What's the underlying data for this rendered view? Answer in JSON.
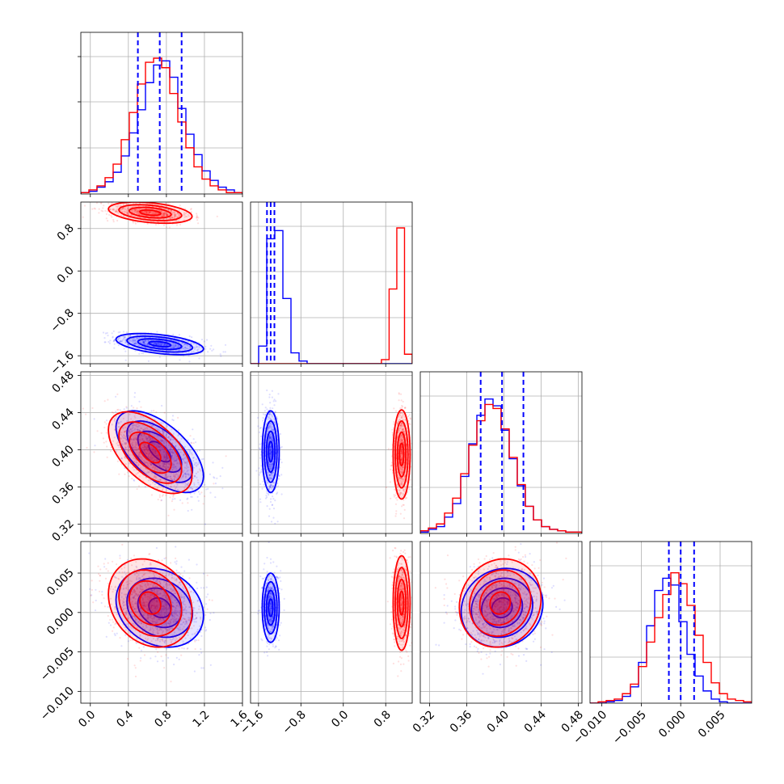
{
  "chart_data": {
    "type": "corner",
    "colors": {
      "run_a": "#0000ff",
      "run_b": "#ff0000"
    },
    "grid": true,
    "parameters": [
      {
        "range": [
          -0.1,
          1.6
        ],
        "ticks": [
          0.0,
          0.4,
          0.8,
          1.2,
          1.6
        ],
        "tick_labels": [
          "0.0",
          "0.4",
          "0.8",
          "1.2",
          "1.6"
        ]
      },
      {
        "range": [
          -1.75,
          1.3
        ],
        "ticks": [
          -1.6,
          -0.8,
          0.0,
          0.8
        ],
        "tick_labels": [
          "−1.6",
          "−0.8",
          "0.0",
          "0.8"
        ]
      },
      {
        "range": [
          0.31,
          0.484
        ],
        "ticks": [
          0.32,
          0.36,
          0.4,
          0.44,
          0.48
        ],
        "tick_labels": [
          "0.32",
          "0.36",
          "0.40",
          "0.44",
          "0.48"
        ]
      },
      {
        "range": [
          -0.0115,
          0.009
        ],
        "ticks": [
          -0.01,
          -0.005,
          0.0,
          0.005
        ],
        "tick_labels": [
          "−0.010",
          "−0.005",
          "0.000",
          "0.005"
        ]
      }
    ],
    "marginals": [
      {
        "edges": [
          -0.1,
          1.6
        ],
        "run_a_counts": [
          0.01,
          0.02,
          0.05,
          0.09,
          0.16,
          0.28,
          0.45,
          0.62,
          0.82,
          0.95,
          0.98,
          0.86,
          0.63,
          0.44,
          0.29,
          0.17,
          0.1,
          0.05,
          0.03,
          0.01
        ],
        "run_b_counts": [
          0.01,
          0.03,
          0.06,
          0.12,
          0.22,
          0.4,
          0.6,
          0.81,
          0.97,
          1.0,
          0.93,
          0.74,
          0.53,
          0.34,
          0.2,
          0.11,
          0.06,
          0.03,
          0.01,
          0.01
        ],
        "run_a_quantiles": [
          0.5,
          0.73,
          0.96
        ]
      },
      {
        "edges": [
          -1.75,
          1.3
        ],
        "run_a_counts": [
          0.0,
          0.13,
          0.92,
          0.98,
          0.48,
          0.08,
          0.02,
          0.0,
          0.0,
          0.0,
          0.0,
          0.0,
          0.0,
          0.0,
          0.0,
          0.0,
          0.0,
          0.0,
          0.0,
          0.0
        ],
        "run_b_counts": [
          0.0,
          0.0,
          0.0,
          0.0,
          0.0,
          0.0,
          0.0,
          0.0,
          0.0,
          0.0,
          0.0,
          0.0,
          0.0,
          0.0,
          0.0,
          0.0,
          0.0,
          0.03,
          0.55,
          1.0,
          0.07
        ],
        "run_b_edges": [
          -1.75,
          1.3
        ],
        "run_a_quantiles": [
          -1.44,
          -1.37,
          -1.3
        ]
      },
      {
        "edges": [
          0.31,
          0.484
        ],
        "run_a_counts": [
          0.01,
          0.03,
          0.05,
          0.12,
          0.22,
          0.42,
          0.66,
          0.87,
          0.99,
          0.94,
          0.76,
          0.55,
          0.35,
          0.2,
          0.1,
          0.05,
          0.03,
          0.02,
          0.01,
          0.01
        ],
        "run_b_counts": [
          0.02,
          0.04,
          0.07,
          0.15,
          0.26,
          0.44,
          0.65,
          0.83,
          0.95,
          0.92,
          0.77,
          0.56,
          0.36,
          0.2,
          0.1,
          0.05,
          0.03,
          0.02,
          0.01,
          0.01
        ],
        "run_a_quantiles": [
          0.375,
          0.398,
          0.421
        ]
      },
      {
        "edges": [
          -0.0115,
          0.009
        ],
        "run_a_counts": [
          0.0,
          0.0,
          0.01,
          0.02,
          0.05,
          0.12,
          0.3,
          0.57,
          0.83,
          0.92,
          0.87,
          0.6,
          0.36,
          0.2,
          0.09,
          0.03,
          0.01,
          0.0,
          0.0,
          0.0
        ],
        "run_b_counts": [
          0.0,
          0.01,
          0.02,
          0.03,
          0.07,
          0.14,
          0.27,
          0.45,
          0.63,
          0.8,
          0.96,
          0.88,
          0.72,
          0.5,
          0.3,
          0.15,
          0.07,
          0.03,
          0.02,
          0.01
        ],
        "run_a_quantiles": [
          -0.0015,
          0.0,
          0.0017
        ]
      }
    ],
    "joint": [
      {
        "row": 1,
        "col": 0,
        "run_a": {
          "mean": [
            0.73,
            -1.38
          ],
          "sd": [
            0.23,
            0.1
          ],
          "corr": -0.45
        },
        "run_b": {
          "mean": [
            0.63,
            1.1
          ],
          "sd": [
            0.22,
            0.1
          ],
          "corr": -0.35
        }
      },
      {
        "row": 2,
        "col": 0,
        "run_a": {
          "mean": [
            0.73,
            0.398
          ],
          "sd": [
            0.23,
            0.022
          ],
          "corr": -0.6
        },
        "run_b": {
          "mean": [
            0.63,
            0.397
          ],
          "sd": [
            0.22,
            0.022
          ],
          "corr": -0.55
        }
      },
      {
        "row": 2,
        "col": 1,
        "run_a": {
          "mean": [
            -1.37,
            0.398
          ],
          "sd": [
            0.08,
            0.022
          ],
          "corr": 0.0
        },
        "run_b": {
          "mean": [
            1.1,
            0.395
          ],
          "sd": [
            0.08,
            0.024
          ],
          "corr": 0.0
        }
      },
      {
        "row": 3,
        "col": 0,
        "run_a": {
          "mean": [
            0.73,
            0.0006
          ],
          "sd": [
            0.23,
            0.0025
          ],
          "corr": -0.2
        },
        "run_b": {
          "mean": [
            0.63,
            0.0012
          ],
          "sd": [
            0.22,
            0.0028
          ],
          "corr": -0.2
        }
      },
      {
        "row": 3,
        "col": 1,
        "run_a": {
          "mean": [
            -1.37,
            0.0006
          ],
          "sd": [
            0.08,
            0.0022
          ],
          "corr": 0.0
        },
        "run_b": {
          "mean": [
            1.1,
            0.0012
          ],
          "sd": [
            0.08,
            0.003
          ],
          "corr": 0.0
        }
      },
      {
        "row": 3,
        "col": 2,
        "run_a": {
          "mean": [
            0.398,
            0.0006
          ],
          "sd": [
            0.022,
            0.0025
          ],
          "corr": 0.1
        },
        "run_b": {
          "mean": [
            0.396,
            0.0012
          ],
          "sd": [
            0.022,
            0.0028
          ],
          "corr": 0.1
        }
      }
    ]
  }
}
